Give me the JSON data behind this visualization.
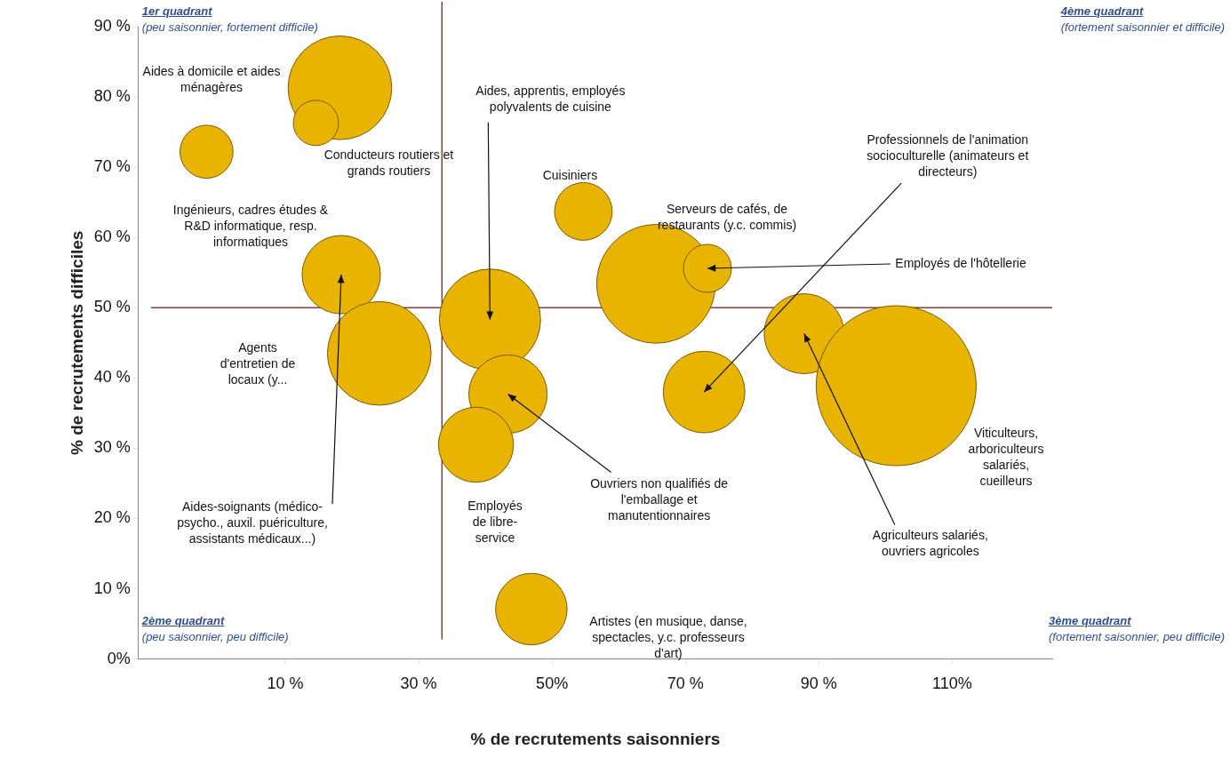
{
  "chart_data": {
    "type": "bubble",
    "xlabel": "% de recrutements saisonniers",
    "ylabel": "% de recrutements difficiles",
    "x": [
      18.2,
      14.6,
      -1.8,
      18.4,
      24.1,
      40.7,
      54.7,
      65.6,
      73.3,
      72.8,
      87.8,
      101.6,
      43.4,
      38.6,
      46.9
    ],
    "values": [
      81.3,
      76.3,
      72.2,
      54.7,
      43.5,
      48.3,
      63.7,
      53.4,
      55.6,
      38.0,
      46.3,
      38.9,
      37.7,
      30.5,
      7.1
    ],
    "sizes": [
      0.42,
      0.08,
      0.11,
      0.24,
      0.42,
      0.4,
      0.13,
      0.55,
      0.09,
      0.26,
      0.25,
      1,
      0.24,
      0.22,
      0.2
    ],
    "color": "#e8b400",
    "xlim": [
      -12,
      125
    ],
    "xticks": [
      {
        "value": 10,
        "label": "10 %"
      },
      {
        "value": 30,
        "label": "30 %"
      },
      {
        "value": 50,
        "label": "50%"
      },
      {
        "value": 70,
        "label": "70 %"
      },
      {
        "value": 90,
        "label": "90 %"
      },
      {
        "value": 110,
        "label": "110%"
      }
    ],
    "ylim": [
      0,
      90
    ],
    "yticks": [
      {
        "value": 0,
        "label": "0%"
      },
      {
        "value": 10,
        "label": "10 %"
      },
      {
        "value": 20,
        "label": "20 %"
      },
      {
        "value": 30,
        "label": "30 %"
      },
      {
        "value": 40,
        "label": "40 %"
      },
      {
        "value": 50,
        "label": "50 %"
      },
      {
        "value": 60,
        "label": "60 %"
      },
      {
        "value": 70,
        "label": "70 %"
      },
      {
        "value": 80,
        "label": "80 %"
      },
      {
        "value": 90,
        "label": "90 %"
      }
    ],
    "grid": false,
    "legend": false,
    "ref_lines": [
      {
        "axis": "x",
        "value": 33.5,
        "color": "#8b3a3a"
      },
      {
        "axis": "y",
        "value": 50,
        "color": "#8b3a3a"
      }
    ],
    "annotations": [
      "1er quadrant\n(peu saisonnier, fortement difficile)",
      "4ème quadrant\n(fortement saisonnier et difficile)",
      "2ème quadrant\n(peu saisonnier, peu difficile)",
      "3ème quadrant\n(fortement saisonnier, peu difficile)",
      "Aides à domicile et aides\nménagères",
      {
        "text": "Conducteurs routiers et\ngrands routiers",
        "x": 14.6,
        "y": 76.3
      },
      "Ingénieurs, cadres études &\nR&D informatique, resp.\ninformatiques",
      {
        "text": "Aides-soignants (médico-\npsycho., auxil. puériculture,\nassistants médicaux...)",
        "x": 18.4,
        "y": 54.7
      },
      "Agents\nd'entretien de\nlocaux (y...",
      {
        "text": "Aides, apprentis, employés\npolyvalents de cuisine",
        "x": 40.7,
        "y": 48.3
      },
      {
        "text": "Cuisiniers",
        "x": 54.7,
        "y": 63.7
      },
      "Serveurs de cafés, de\nrestaurants (y.c. commis)",
      {
        "text": "Employés de l'hôtellerie",
        "x": 73.3,
        "y": 55.6
      },
      {
        "text": "Professionnels de l'animation\nsocioculturelle (animateurs et\ndirecteurs)",
        "x": 72.8,
        "y": 38.0
      },
      {
        "text": "Agriculteurs salariés,\nouvriers agricoles",
        "x": 87.8,
        "y": 46.3
      },
      "Viticulteurs,\narboriculteurs\nsalariés,\ncueilleurs",
      {
        "text": "Ouvriers non qualifiés de\nl'emballage et\nmanutentionnaires",
        "x": 43.4,
        "y": 37.7
      },
      "Employés\nde libre-\nservice",
      "Artistes (en musique, danse,\nspectacles, y.c. professeurs\nd'art)"
    ]
  }
}
